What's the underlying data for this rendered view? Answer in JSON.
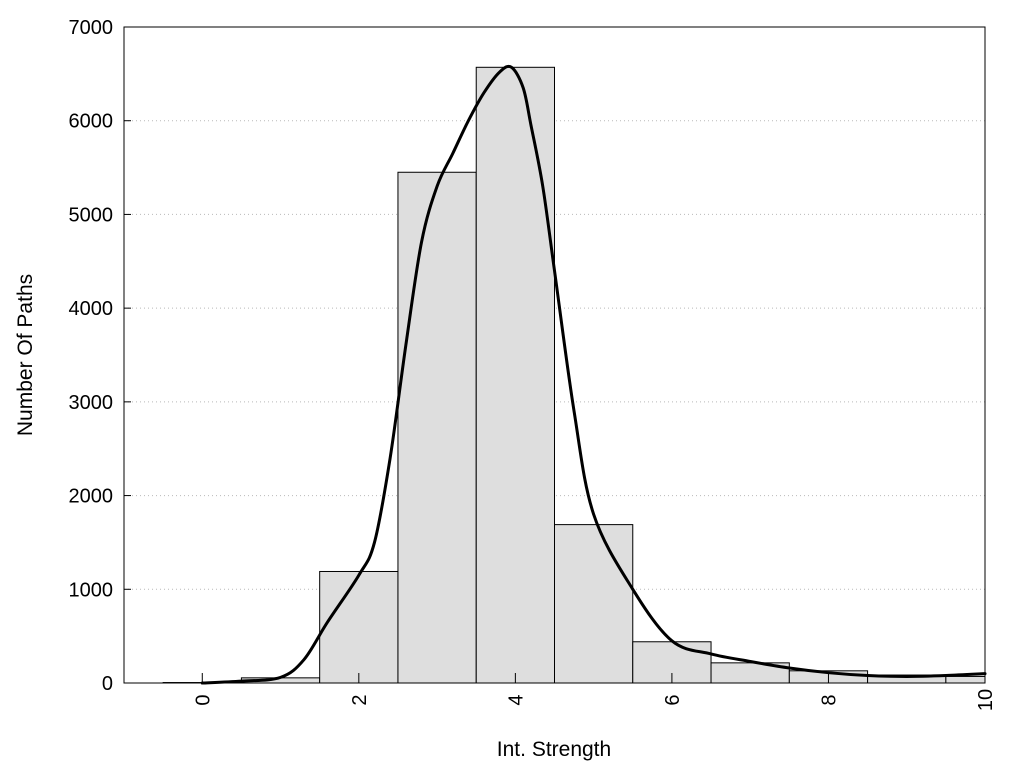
{
  "chart_data": {
    "type": "bar",
    "title": "",
    "xlabel": "Int. Strength",
    "ylabel": "Number Of Paths",
    "xlim": [
      -1,
      10
    ],
    "ylim": [
      0,
      7000
    ],
    "x_ticks": [
      0,
      2,
      4,
      6,
      8,
      10
    ],
    "y_ticks": [
      0,
      1000,
      2000,
      3000,
      4000,
      5000,
      6000,
      7000
    ],
    "grid": "horizontal dotted",
    "legend": "none",
    "histogram": {
      "bin_width": 1,
      "bin_centers": [
        0,
        1,
        2,
        3,
        4,
        5,
        6,
        7,
        8,
        9,
        10
      ],
      "values": [
        5,
        55,
        1190,
        5450,
        6570,
        1690,
        440,
        215,
        130,
        85,
        70
      ],
      "fill_color": "#dedede",
      "edge_color": "#000000"
    },
    "density_curve": {
      "color": "#000000",
      "x": [
        0,
        0.5,
        1.0,
        1.3,
        1.6,
        2.0,
        2.2,
        2.4,
        2.6,
        2.8,
        3.0,
        3.2,
        3.4,
        3.6,
        3.8,
        3.95,
        4.1,
        4.2,
        4.35,
        4.5,
        4.75,
        5.0,
        5.5,
        6.0,
        6.5,
        7.0,
        7.5,
        8.0,
        8.5,
        9.0,
        9.5,
        10.0
      ],
      "y": [
        0,
        20,
        60,
        250,
        650,
        1150,
        1500,
        2400,
        3600,
        4700,
        5300,
        5650,
        6000,
        6300,
        6520,
        6570,
        6350,
        5950,
        5300,
        4400,
        2900,
        1800,
        1000,
        450,
        310,
        230,
        160,
        110,
        80,
        70,
        80,
        100
      ]
    }
  }
}
